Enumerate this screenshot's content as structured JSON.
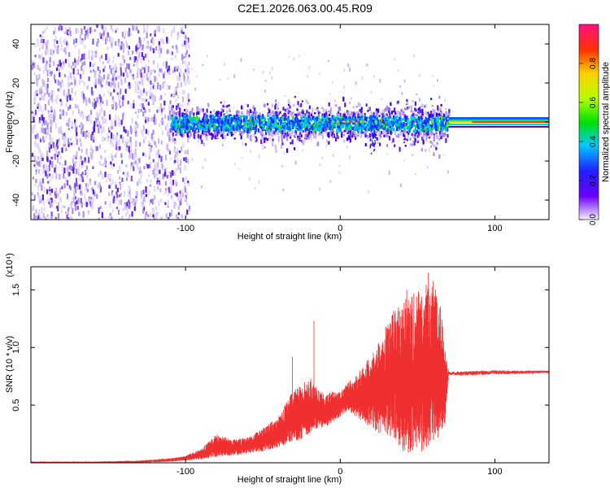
{
  "title": "C2E1.2026.063.00.45.R09",
  "colors": {
    "snr_line": "#f03030",
    "spectro_dense": "#3a00dc",
    "spectro_light": "#c9b8f2",
    "frame": "#000000"
  },
  "chart_data": [
    {
      "type": "heatmap",
      "name": "spectrogram",
      "xlabel": "Height of straight line (km)",
      "ylabel": "Frequency (Hz)",
      "xlim": [
        -200,
        135
      ],
      "ylim": [
        -50,
        50
      ],
      "xticks": [
        {
          "value": -100,
          "label": "-100"
        },
        {
          "value": 0,
          "label": "0"
        },
        {
          "value": 100,
          "label": "100"
        }
      ],
      "yticks": [
        {
          "value": -40,
          "label": "-40"
        },
        {
          "value": -20,
          "label": "-20"
        },
        {
          "value": 0,
          "label": "0"
        },
        {
          "value": 20,
          "label": "20"
        },
        {
          "value": 40,
          "label": "40"
        }
      ],
      "colorbar": {
        "label": "Normalized spectral amplitude",
        "range": [
          0,
          1
        ],
        "ticks": [
          {
            "value": 0.0,
            "label": "0.0"
          },
          {
            "value": 0.2,
            "label": "0.2"
          },
          {
            "value": 0.4,
            "label": "0.4"
          },
          {
            "value": 0.6,
            "label": "0.6"
          },
          {
            "value": 0.8,
            "label": "0.8"
          }
        ]
      },
      "regions": [
        {
          "x_range": [
            -200,
            -98
          ],
          "description": "broadband noise across full frequency range",
          "band_hz": [
            -50,
            50
          ]
        },
        {
          "x_range": [
            -110,
            70
          ],
          "description": "energy concentrated near 0 Hz",
          "band_hz": [
            -10,
            10
          ]
        },
        {
          "x_range": [
            70,
            135
          ],
          "description": "narrow band at 0 Hz, high amplitude",
          "band_hz": [
            -3,
            3
          ]
        }
      ]
    },
    {
      "type": "line",
      "name": "snr",
      "xlabel": "Height of straight line (km)",
      "ylabel": "SNR (10 * v/v)",
      "y_multiplier": "(x10⁴)",
      "xlim": [
        -200,
        135
      ],
      "ylim": [
        0,
        1.7
      ],
      "xticks": [
        {
          "value": -100,
          "label": "-100"
        },
        {
          "value": 0,
          "label": "0"
        },
        {
          "value": 100,
          "label": "100"
        }
      ],
      "yticks": [
        {
          "value": 0.5,
          "label": "0.5"
        },
        {
          "value": 1.0,
          "label": "1.0"
        },
        {
          "value": 1.5,
          "label": "1.5"
        }
      ],
      "envelope": {
        "x": [
          -200,
          -160,
          -130,
          -110,
          -100,
          -90,
          -80,
          -70,
          -60,
          -50,
          -40,
          -32,
          -25,
          -20,
          -15,
          -10,
          -5,
          0,
          5,
          10,
          15,
          20,
          25,
          30,
          35,
          40,
          45,
          50,
          55,
          60,
          65,
          68,
          70,
          80,
          100,
          120,
          135
        ],
        "low": [
          0.0,
          0.0,
          0.0,
          0.01,
          0.02,
          0.03,
          0.05,
          0.06,
          0.08,
          0.1,
          0.13,
          0.18,
          0.2,
          0.25,
          0.3,
          0.3,
          0.35,
          0.4,
          0.45,
          0.4,
          0.35,
          0.3,
          0.25,
          0.25,
          0.2,
          0.1,
          0.08,
          0.1,
          0.1,
          0.15,
          0.25,
          0.35,
          0.75,
          0.74,
          0.75,
          0.76,
          0.77
        ],
        "high": [
          0.01,
          0.01,
          0.02,
          0.04,
          0.06,
          0.12,
          0.25,
          0.2,
          0.22,
          0.3,
          0.4,
          0.6,
          0.7,
          0.75,
          0.65,
          0.6,
          0.62,
          0.62,
          0.7,
          0.75,
          0.85,
          0.95,
          1.05,
          1.2,
          1.35,
          1.4,
          1.45,
          1.5,
          1.55,
          1.6,
          1.35,
          1.0,
          0.8,
          0.81,
          0.82,
          0.81,
          0.81
        ]
      },
      "spikes": [
        {
          "x": -17,
          "y": 1.23
        },
        {
          "x": -31,
          "y": 0.92
        },
        {
          "x": 57,
          "y": 1.65
        },
        {
          "x": 43,
          "y": 1.5
        }
      ]
    }
  ]
}
